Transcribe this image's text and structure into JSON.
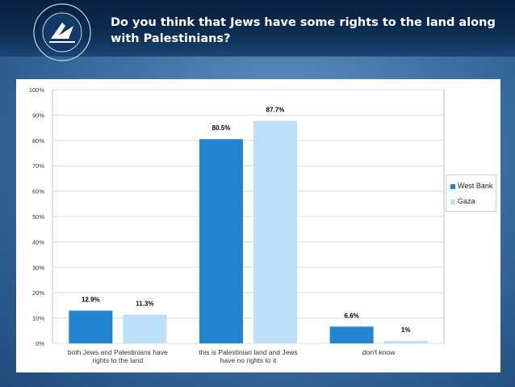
{
  "header": {
    "title": "Do you think that Jews have some rights to the land along with Palestinians?",
    "logo_text": "IDEAS  ACTION  IMPACT  THE WASHINGTON INSTITUTE FOR NEAR EAST POLICY"
  },
  "colors": {
    "west_bank": "#2384d1",
    "gaza": "#bde0fa",
    "header_bg": "#0b2a4f",
    "background": "#4a7db0"
  },
  "chart_data": {
    "type": "bar",
    "title": "Do you think that Jews have some rights to the land along with Palestinians?",
    "categories": [
      "both Jews and Palestinians have rights to the land",
      "this is Palestinian land and Jews have no rights to it",
      "don't know"
    ],
    "category_lines": [
      [
        "both Jews and Palestinians have",
        "rights to the land"
      ],
      [
        "this is Palestinian land and Jews",
        "have no rights to it"
      ],
      [
        "don't know"
      ]
    ],
    "series": [
      {
        "name": "West Bank",
        "values": [
          12.9,
          80.5,
          6.6
        ],
        "labels": [
          "12.9%",
          "80.5%",
          "6.6%"
        ],
        "color": "#2384d1"
      },
      {
        "name": "Gaza",
        "values": [
          11.3,
          87.7,
          1
        ],
        "labels": [
          "11.3%",
          "87.7%",
          "1%"
        ],
        "color": "#bde0fa"
      }
    ],
    "y_ticks": [
      "0%",
      "10%",
      "20%",
      "30%",
      "40%",
      "50%",
      "60%",
      "70%",
      "80%",
      "90%",
      "100%"
    ],
    "ylim": [
      0,
      100
    ],
    "grid": true,
    "legend_position": "right"
  }
}
